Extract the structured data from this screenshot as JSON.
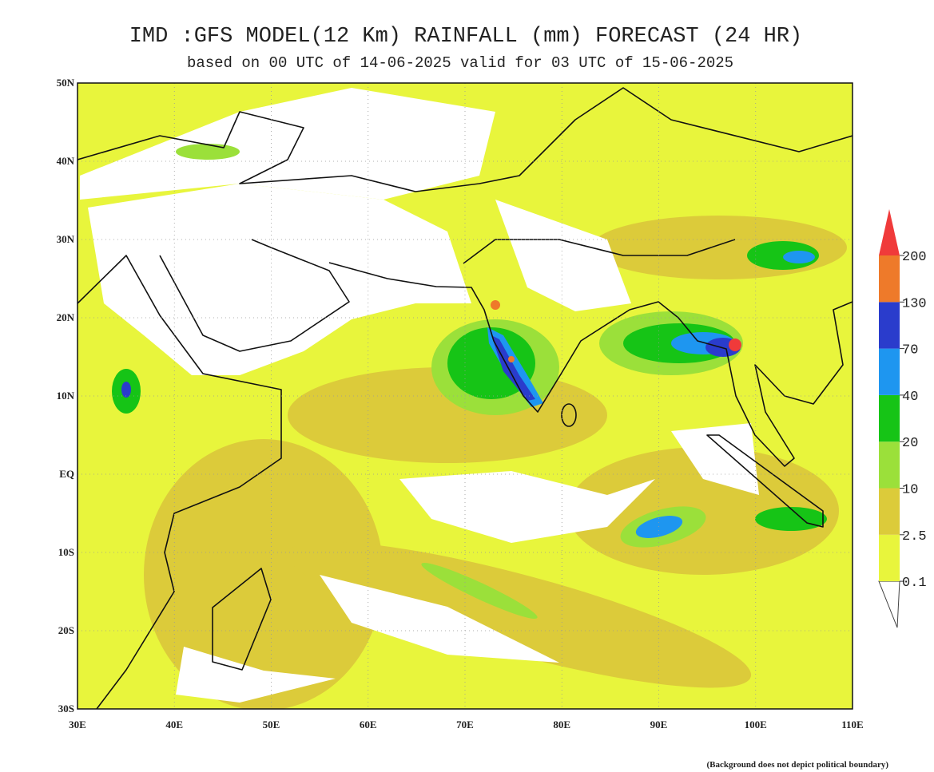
{
  "title": "IMD :GFS MODEL(12 Km) RAINFALL (mm) FORECAST (24 HR)",
  "subtitle": "based on 00 UTC of 14-06-2025 valid for 03 UTC of 15-06-2025",
  "map": {
    "lat_labels": [
      "50N",
      "40N",
      "30N",
      "20N",
      "10N",
      "EQ",
      "10S",
      "20S",
      "30S"
    ],
    "lon_labels": [
      "30E",
      "40E",
      "50E",
      "60E",
      "70E",
      "80E",
      "90E",
      "100E",
      "110E"
    ]
  },
  "colorbar": {
    "levels": [
      0.1,
      2.5,
      10,
      20,
      40,
      70,
      130,
      200
    ],
    "colors": [
      "#ffffff",
      "#e8f53c",
      "#dccb3a",
      "#9be03a",
      "#16c416",
      "#1e96f0",
      "#2a3ccc",
      "#ee7a2a",
      "#f03a3a"
    ]
  },
  "footnote": "(Background does not depict political boundary)"
}
